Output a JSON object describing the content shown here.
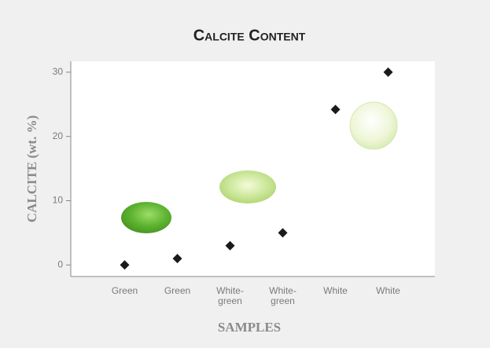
{
  "chart_data": {
    "type": "scatter",
    "title": "Calcite Content",
    "categories": [
      "Green",
      "Green",
      "White-green",
      "White-green",
      "White",
      "White"
    ],
    "values": [
      0,
      1,
      3,
      5,
      24.2,
      30
    ],
    "color": "#1a1a1a",
    "y_label": "CALCITE (wt. %)",
    "x_label": "SAMPLES",
    "ylim": [
      -1.8,
      31.7
    ],
    "yticks": [
      0,
      10,
      20,
      30
    ],
    "grid": false
  }
}
